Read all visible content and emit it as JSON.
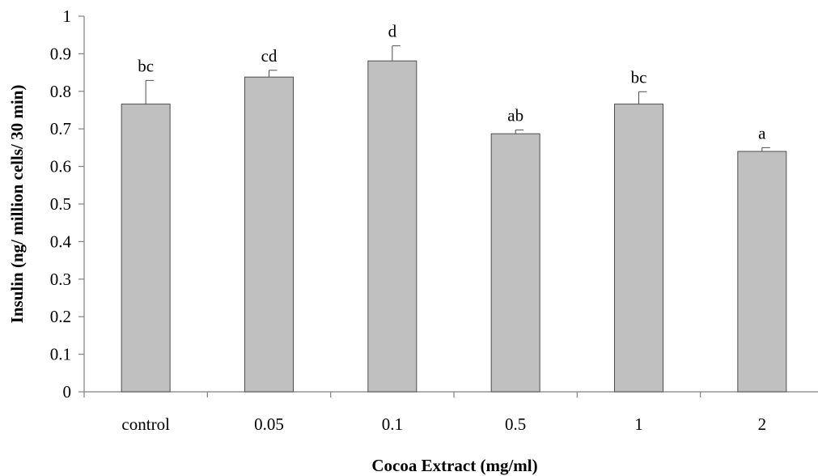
{
  "chart_data": {
    "type": "bar",
    "xlabel": "Cocoa Extract (mg/ml)",
    "ylabel": "Insulin (ng/ million cells/ 30 min)",
    "ylim": [
      0,
      1
    ],
    "yticks": [
      "0",
      "0.1",
      "0.2",
      "0.3",
      "0.4",
      "0.5",
      "0.6",
      "0.7",
      "0.8",
      "0.9",
      "1"
    ],
    "categories": [
      "control",
      "0.05",
      "0.1",
      "0.5",
      "1",
      "2"
    ],
    "values": [
      0.766,
      0.838,
      0.881,
      0.687,
      0.766,
      0.64
    ],
    "error_plus": [
      0.063,
      0.018,
      0.04,
      0.01,
      0.033,
      0.01
    ],
    "significance_labels": [
      "bc",
      "cd",
      "d",
      "ab",
      "bc",
      "a"
    ],
    "grid": false,
    "legend": "none",
    "colors": {
      "bar_fill": "#c0c0c0",
      "bar_stroke": "#4d4d4d",
      "axis": "#808080"
    }
  }
}
